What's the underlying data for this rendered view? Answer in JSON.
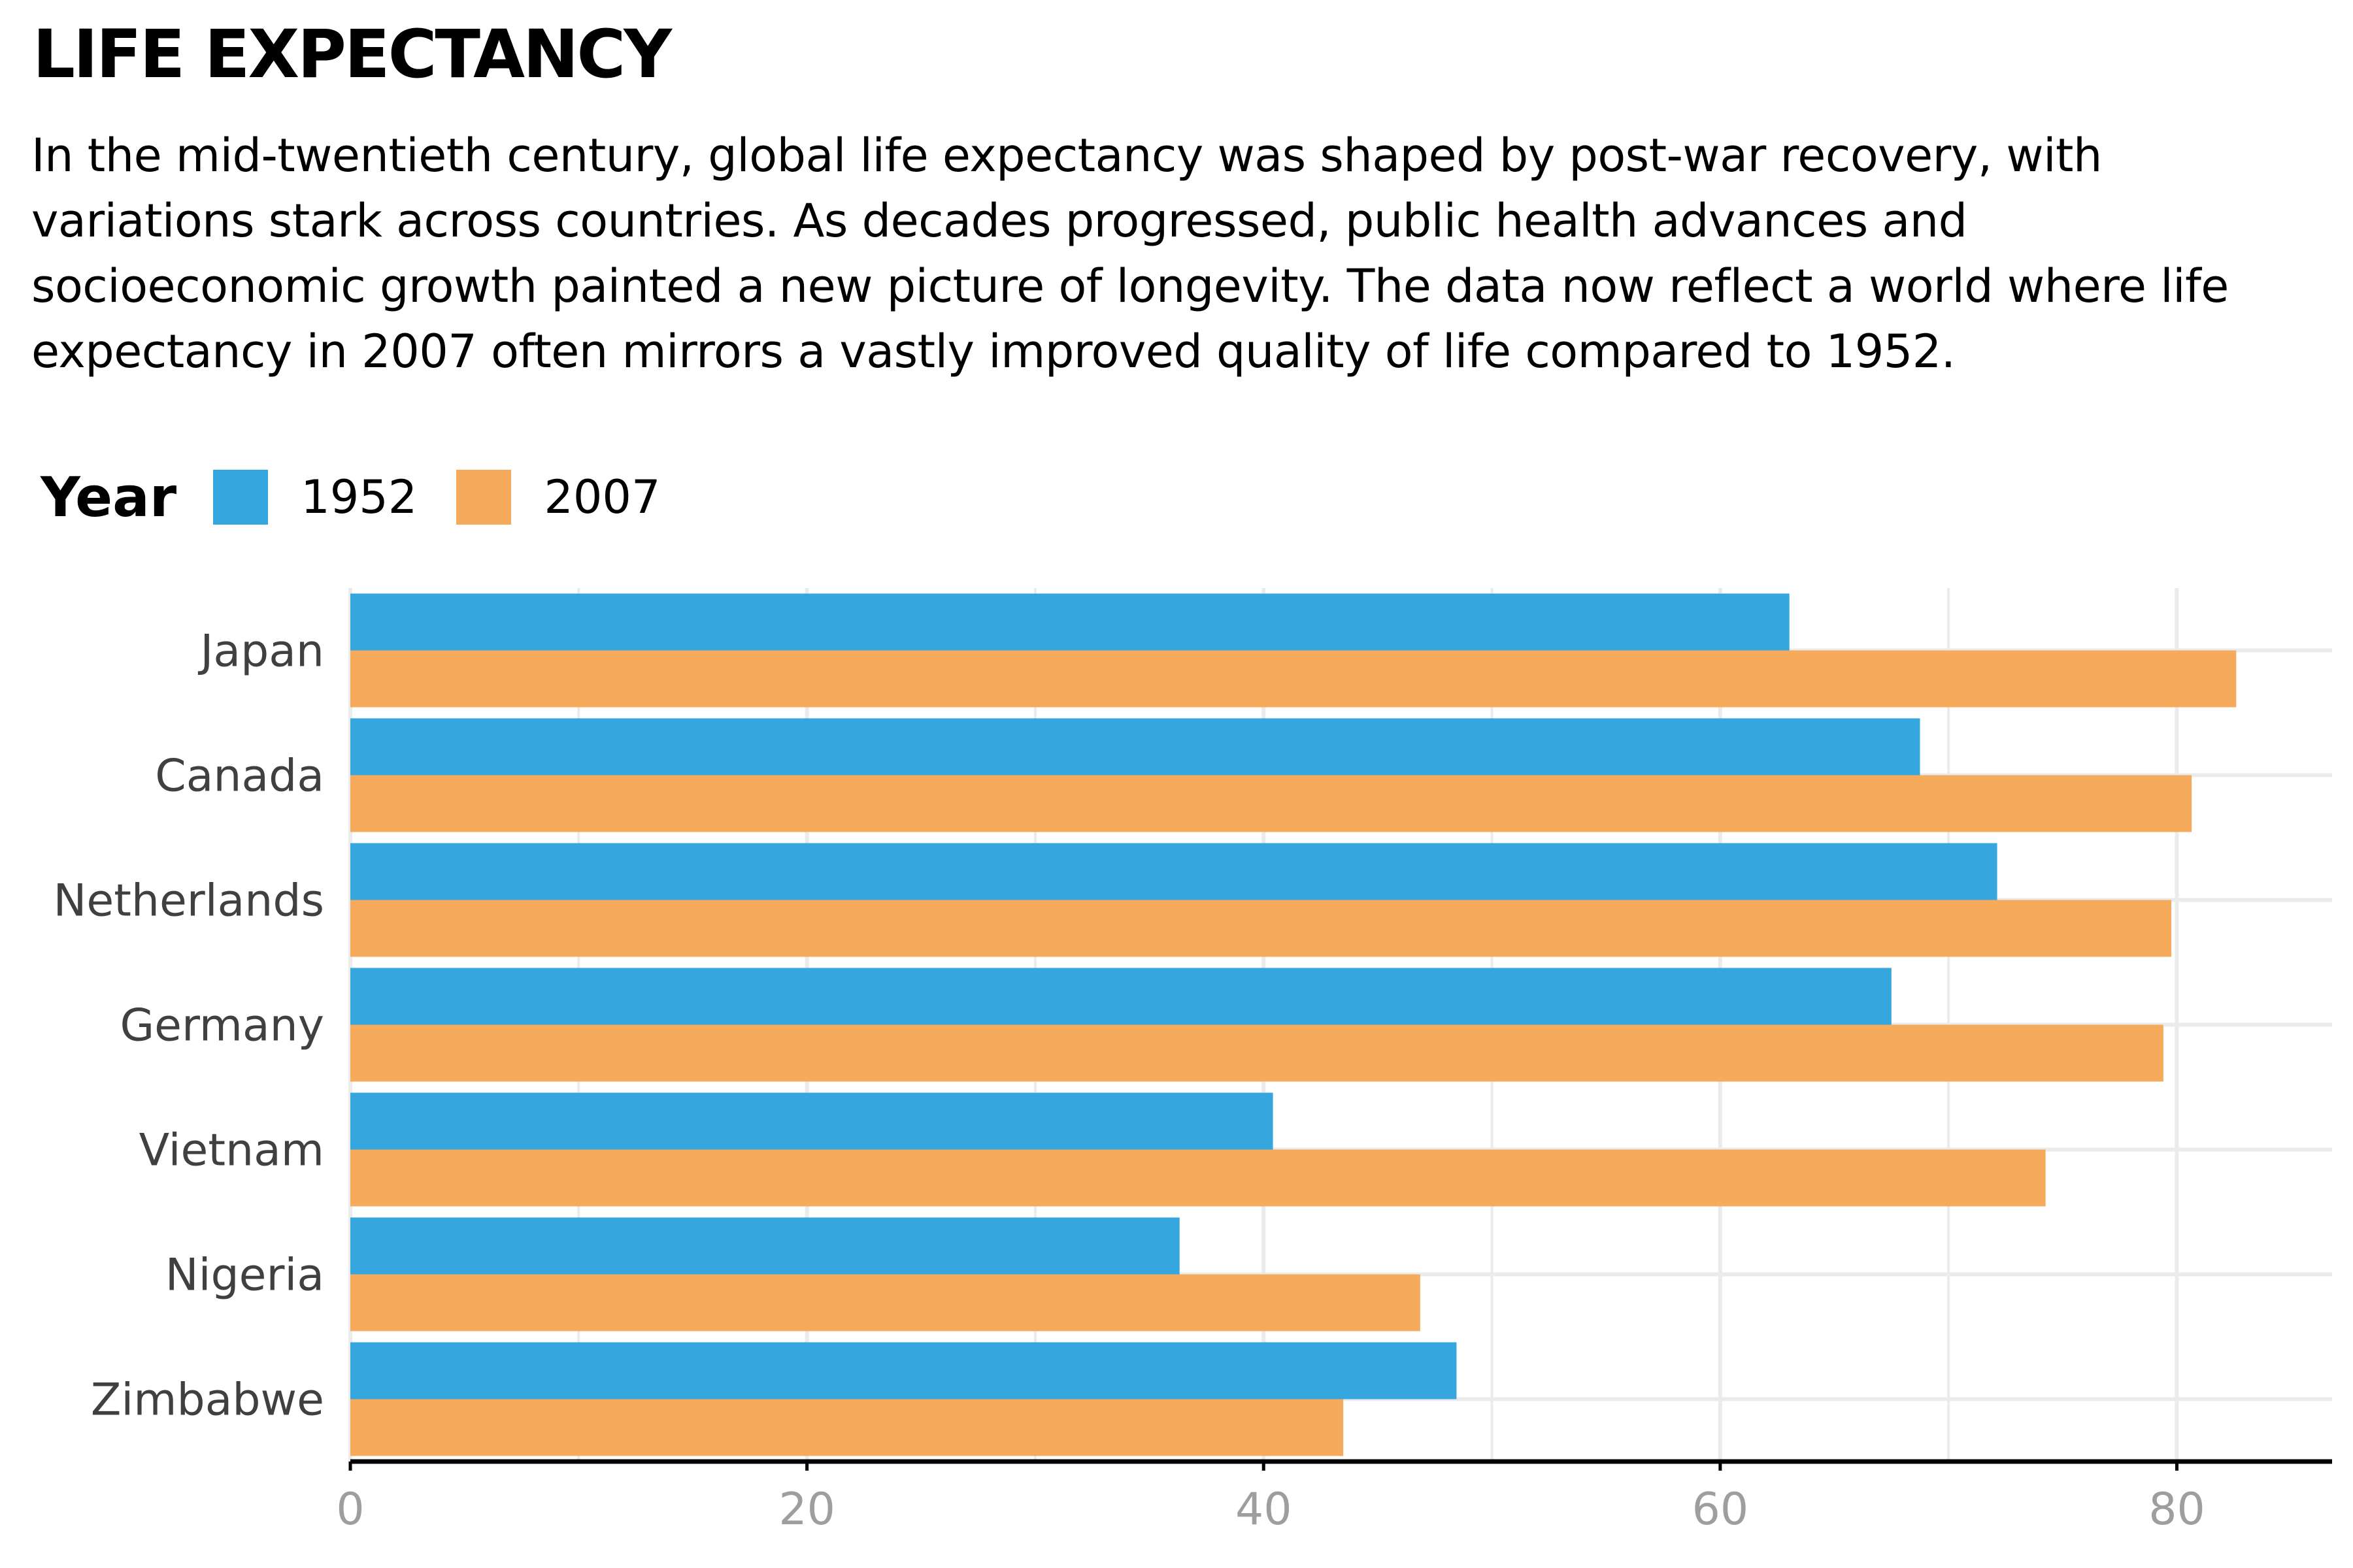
{
  "title": "LIFE EXPECTANCY",
  "subtitle": "In the mid-twentieth century, global life expectancy was shaped by post-war recovery, with variations stark across countries. As decades progressed, public health advances and socioeconomic growth painted a new picture of longevity. The data now reflect a world where life expectancy in 2007 often mirrors a vastly improved quality of life compared to 1952.",
  "legend": {
    "title": "Year",
    "position": "top-left"
  },
  "colors": {
    "series_1952": "#36a7de",
    "series_2007": "#f5aa5c",
    "grid": "#ebebeb",
    "axis": "#000000"
  },
  "chart_data": {
    "type": "bar",
    "orientation": "horizontal",
    "categories": [
      "Japan",
      "Canada",
      "Netherlands",
      "Germany",
      "Vietnam",
      "Nigeria",
      "Zimbabwe"
    ],
    "series": [
      {
        "name": "1952",
        "values": [
          63.03,
          68.75,
          72.13,
          67.5,
          40.41,
          36.32,
          48.45
        ]
      },
      {
        "name": "2007",
        "values": [
          82.6,
          80.65,
          79.76,
          79.41,
          74.25,
          46.86,
          43.49
        ]
      }
    ],
    "xlim": [
      0,
      86.8
    ],
    "xticks": [
      "0",
      "20",
      "40",
      "60",
      "80"
    ],
    "xlabel": "",
    "ylabel": "",
    "grid": true
  }
}
